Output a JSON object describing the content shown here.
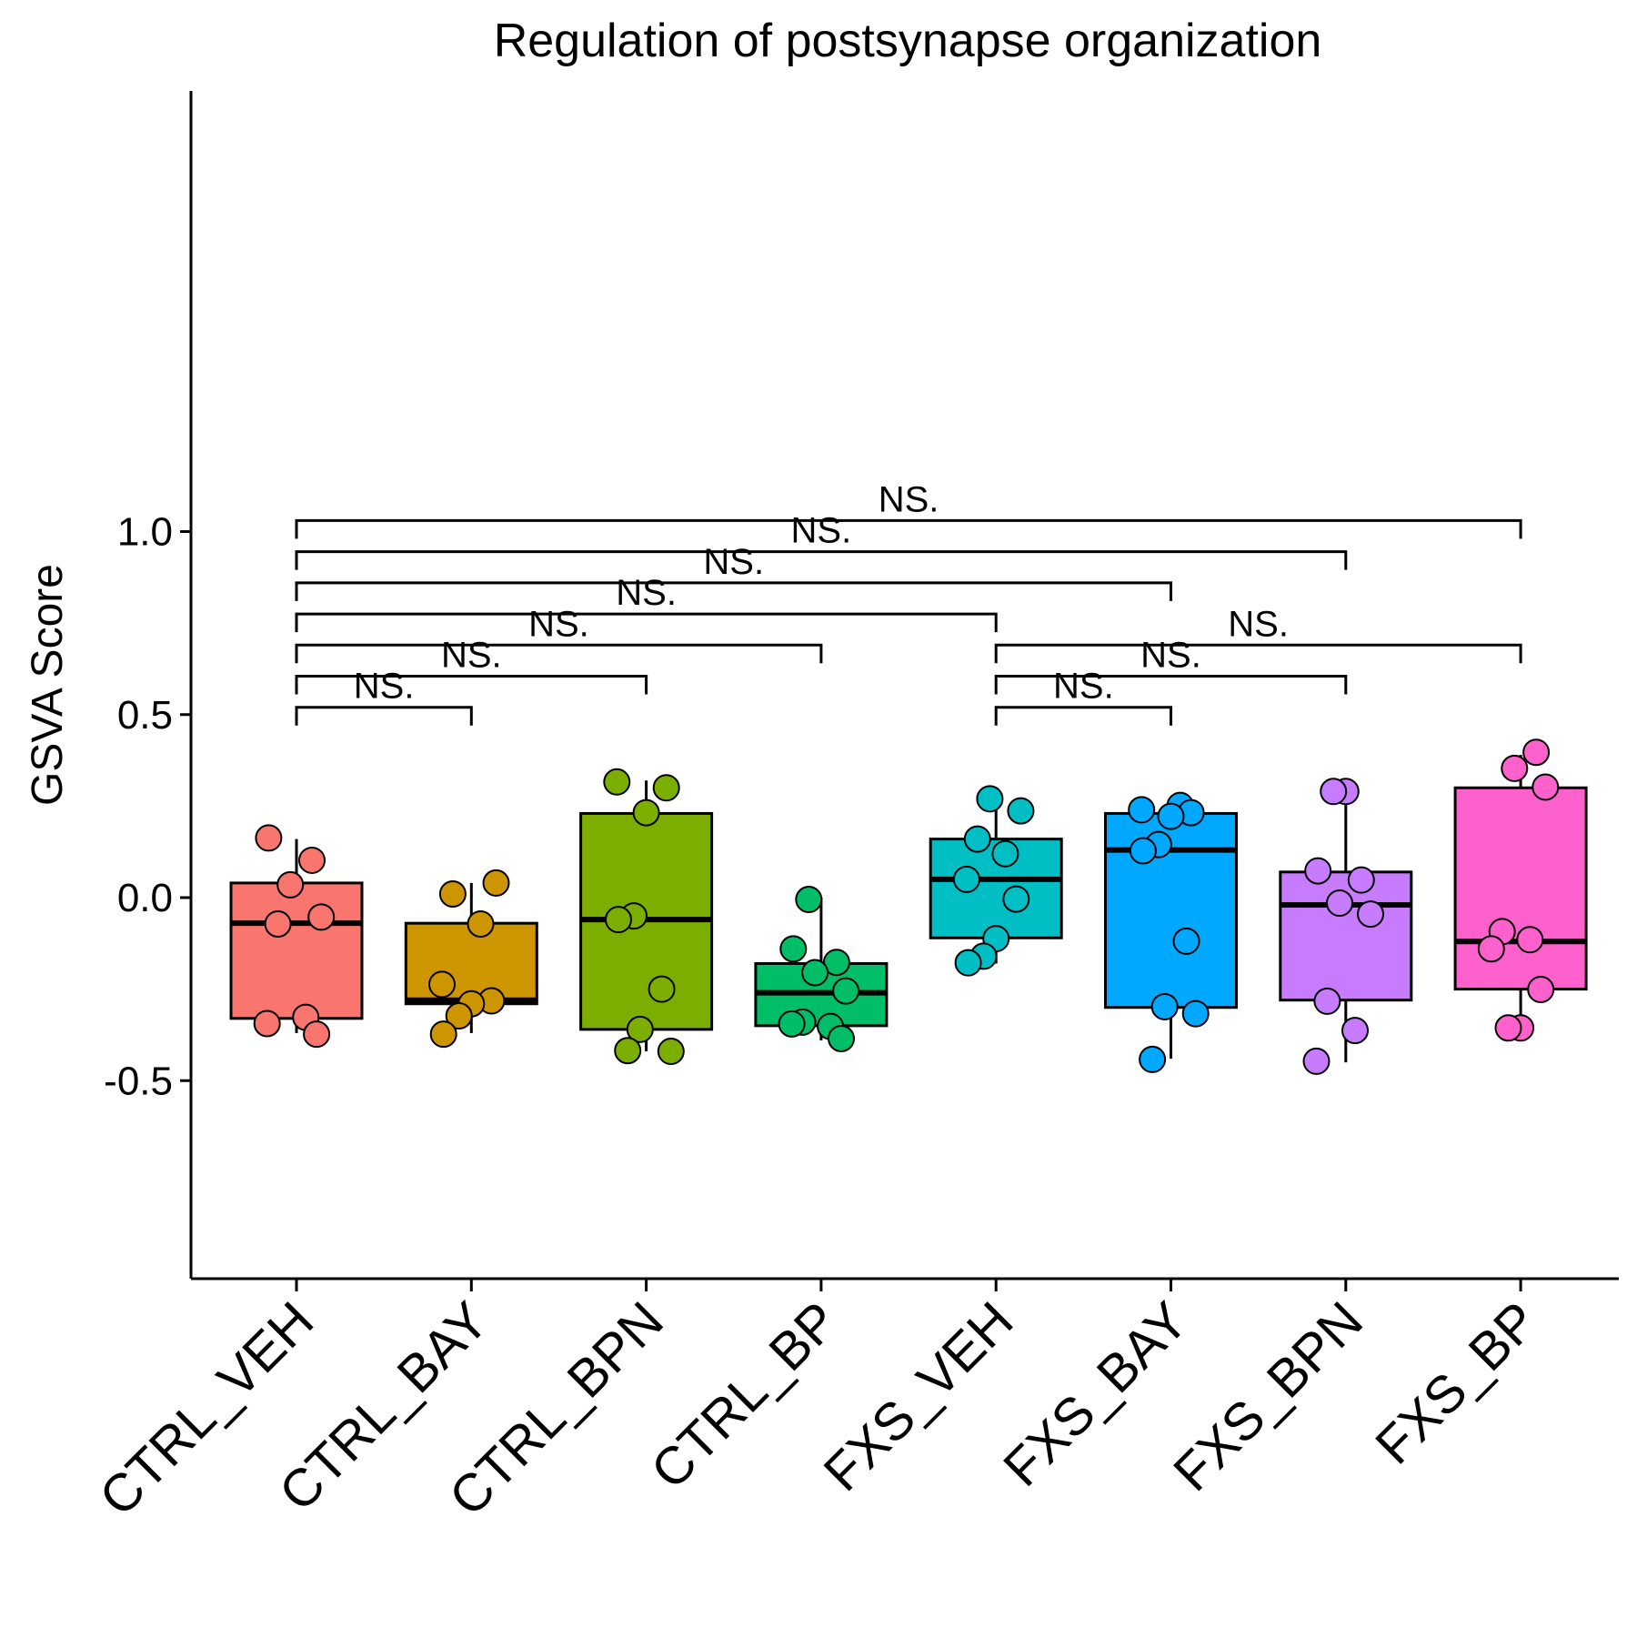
{
  "chart_data": {
    "type": "box",
    "title": "Regulation of postsynapse organization",
    "xlabel": "",
    "ylabel": "GSVA Score",
    "ylim": [
      -0.52,
      1.1
    ],
    "yticks": [
      -0.5,
      0.0,
      0.5,
      1.0
    ],
    "ytick_labels": [
      "-0.5",
      "0.0",
      "0.5",
      "1.0"
    ],
    "categories": [
      "CTRL_VEH",
      "CTRL_BAY",
      "CTRL_BPN",
      "CTRL_BP",
      "FXS_VEH",
      "FXS_BAY",
      "FXS_BPN",
      "FXS_BP"
    ],
    "colors": [
      "#F8766D",
      "#CD9600",
      "#7CAE00",
      "#00BE67",
      "#00BFC4",
      "#00A9FF",
      "#C77CFF",
      "#FF61CC"
    ],
    "boxes": [
      {
        "whisker_low": -0.37,
        "q1": -0.33,
        "median": -0.07,
        "q3": 0.04,
        "whisker_high": 0.16
      },
      {
        "whisker_low": -0.37,
        "q1": -0.29,
        "median": -0.28,
        "q3": -0.07,
        "whisker_high": 0.04
      },
      {
        "whisker_low": -0.42,
        "q1": -0.36,
        "median": -0.06,
        "q3": 0.23,
        "whisker_high": 0.32
      },
      {
        "whisker_low": -0.39,
        "q1": -0.35,
        "median": -0.26,
        "q3": -0.18,
        "whisker_high": 0.0
      },
      {
        "whisker_low": -0.18,
        "q1": -0.11,
        "median": 0.05,
        "q3": 0.16,
        "whisker_high": 0.27
      },
      {
        "whisker_low": -0.44,
        "q1": -0.3,
        "median": 0.13,
        "q3": 0.23,
        "whisker_high": 0.25
      },
      {
        "whisker_low": -0.45,
        "q1": -0.28,
        "median": -0.02,
        "q3": 0.07,
        "whisker_high": 0.29
      },
      {
        "whisker_low": -0.36,
        "q1": -0.25,
        "median": -0.12,
        "q3": 0.3,
        "whisker_high": 0.39
      }
    ],
    "points": [
      [
        0.163,
        0.102,
        0.035,
        -0.053,
        -0.072,
        -0.327,
        -0.344,
        -0.373
      ],
      [
        0.04,
        0.01,
        -0.072,
        -0.237,
        -0.282,
        -0.29,
        -0.323,
        -0.373
      ],
      [
        0.316,
        0.3,
        0.232,
        -0.05,
        -0.06,
        -0.25,
        -0.36,
        -0.42,
        -0.418
      ],
      [
        -0.005,
        -0.14,
        -0.177,
        -0.205,
        -0.255,
        -0.34,
        -0.352,
        -0.345,
        -0.385
      ],
      [
        0.27,
        0.237,
        0.16,
        0.12,
        0.05,
        -0.004,
        -0.112,
        -0.16,
        -0.178
      ],
      [
        0.252,
        0.24,
        0.232,
        0.222,
        0.145,
        0.128,
        -0.119,
        -0.298,
        -0.317,
        -0.442
      ],
      [
        0.29,
        0.29,
        0.073,
        0.048,
        -0.015,
        -0.045,
        -0.283,
        -0.363,
        -0.447
      ],
      [
        0.397,
        0.353,
        0.302,
        -0.093,
        -0.115,
        -0.14,
        -0.251,
        -0.356,
        -0.356
      ]
    ],
    "comparisons": [
      {
        "from": 0,
        "to": 1,
        "y": 0.52,
        "label": "NS."
      },
      {
        "from": 0,
        "to": 2,
        "y": 0.605,
        "label": "NS."
      },
      {
        "from": 0,
        "to": 3,
        "y": 0.69,
        "label": "NS."
      },
      {
        "from": 0,
        "to": 4,
        "y": 0.775,
        "label": "NS."
      },
      {
        "from": 0,
        "to": 5,
        "y": 0.86,
        "label": "NS."
      },
      {
        "from": 0,
        "to": 6,
        "y": 0.945,
        "label": "NS."
      },
      {
        "from": 0,
        "to": 7,
        "y": 1.03,
        "label": "NS."
      },
      {
        "from": 4,
        "to": 5,
        "y": 0.52,
        "label": "NS."
      },
      {
        "from": 4,
        "to": 6,
        "y": 0.605,
        "label": "NS."
      },
      {
        "from": 4,
        "to": 7,
        "y": 0.69,
        "label": "NS."
      }
    ],
    "grid": false,
    "legend": "none"
  }
}
